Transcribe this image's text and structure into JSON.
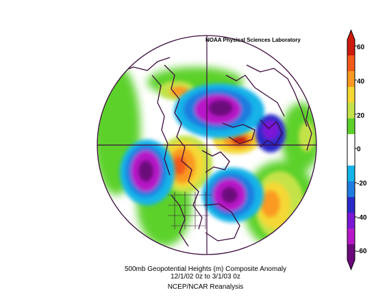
{
  "map": {
    "credit": "NOAA Physical Sciences Laboratory",
    "title_line1": "500mb Geopotential Heights (m)   Composite Anomaly",
    "title_line2": "12/1/02 0z  to 3/1/03 0z",
    "source_line": "NCEP/NCAR Reanalysis",
    "projection": "north-polar-stereographic",
    "colorbar": {
      "tick_labels": [
        "60",
        "40",
        "20",
        "0",
        "-20",
        "-40",
        "-60"
      ],
      "colors_top_to_bottom": [
        "#cc1a0d",
        "#f25a1a",
        "#fa9a22",
        "#f5d834",
        "#c4e34a",
        "#5cd12a",
        "#ffffff",
        "#ffffff",
        "#14b4e8",
        "#1f7ce0",
        "#2a2ac8",
        "#7a18d6",
        "#b818c8",
        "#6a0a7a"
      ]
    }
  }
}
